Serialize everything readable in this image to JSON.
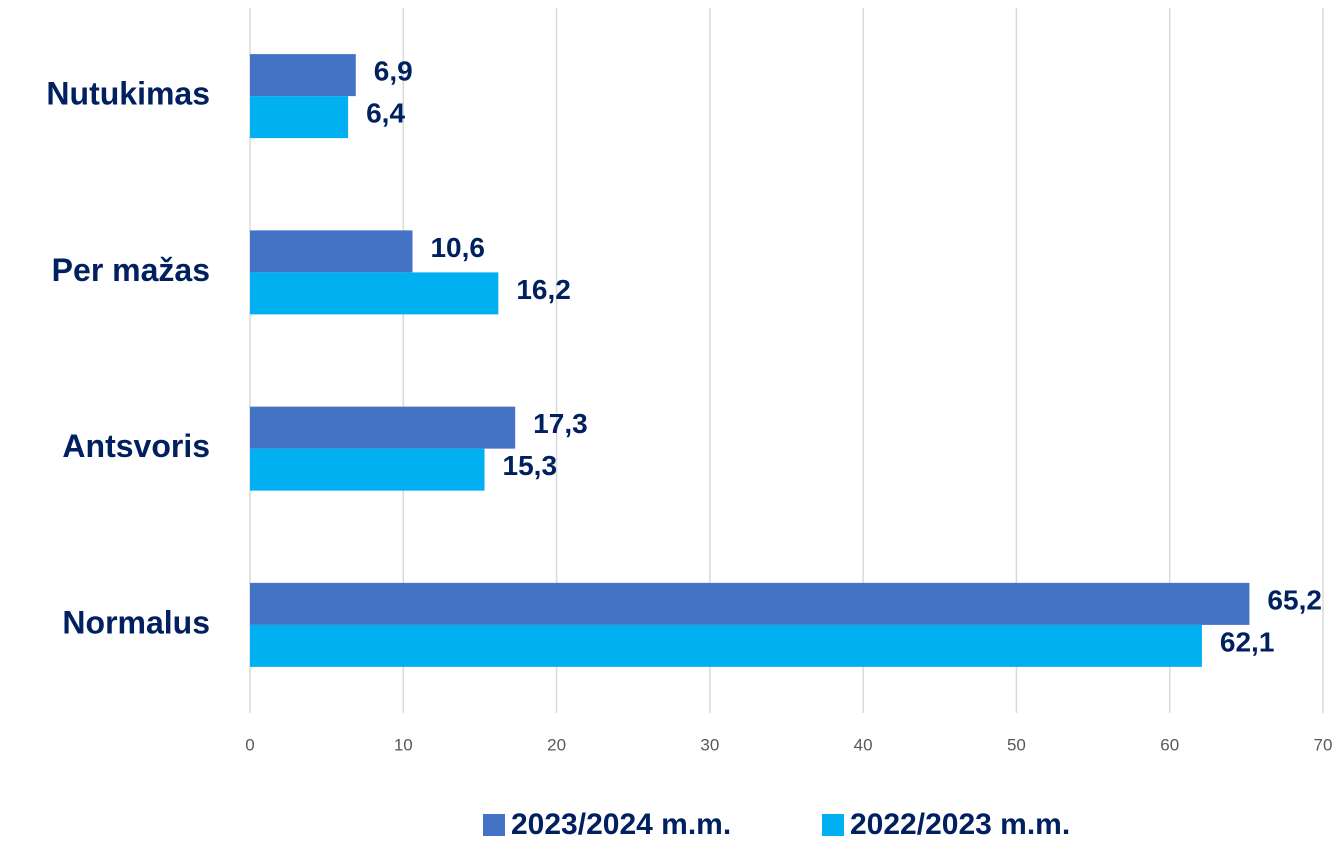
{
  "chart_data": {
    "type": "hbar",
    "categories": [
      "Nutukimas",
      "Per mažas",
      "Antsvoris",
      "Normalus"
    ],
    "series": [
      {
        "name": "2023/2024 m.m.",
        "color": "#4472c4",
        "values": [
          6.9,
          10.6,
          17.3,
          65.2
        ],
        "value_labels": [
          "6,9",
          "10,6",
          "17,3",
          "65,2"
        ]
      },
      {
        "name": "2022/2023 m.m.",
        "color": "#00b0f0",
        "values": [
          6.4,
          16.2,
          15.3,
          62.1
        ],
        "value_labels": [
          "6,4",
          "16,2",
          "15,3",
          "62,1"
        ]
      }
    ],
    "xlim": [
      0,
      70
    ],
    "xticks": [
      0,
      10,
      20,
      30,
      40,
      50,
      60,
      70
    ],
    "grid": true
  }
}
